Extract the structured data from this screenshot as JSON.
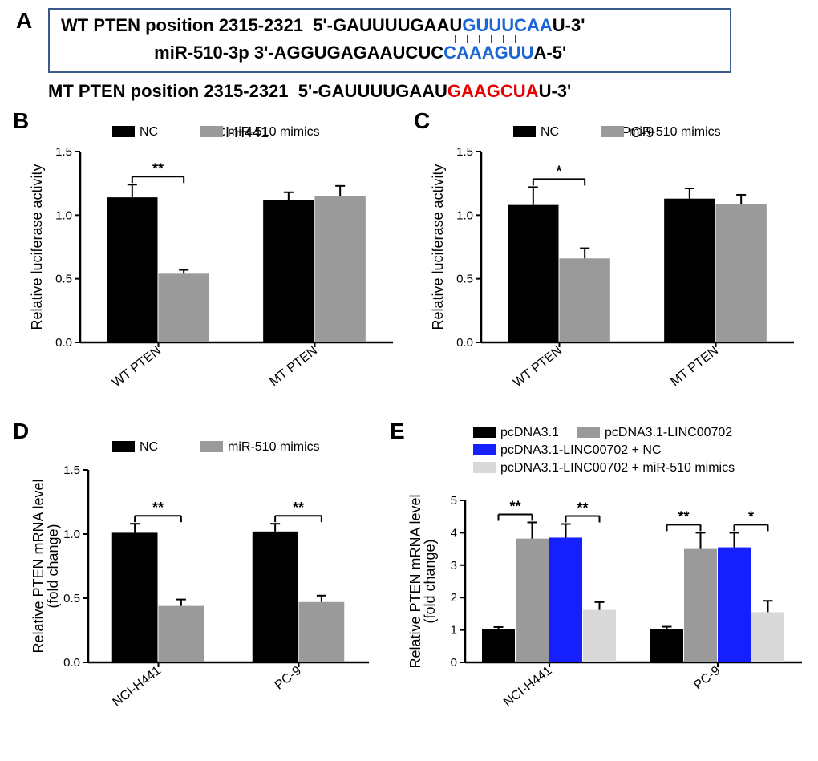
{
  "panelA": {
    "wt_label": "WT PTEN position 2315-2321",
    "wt_seq_pre_5": "5'-GAUUUUGAAU",
    "wt_seq_match": "GUUUCAA",
    "wt_seq_post": "U-3'",
    "mir_label": "miR-510-3p",
    "mir_seq_pre_3": "3'-AGGUGAGAAUCUC",
    "mir_seq_match": "CAAAGUU",
    "mir_seq_post": "A-5'",
    "mt_label": "MT PTEN position 2315-2321",
    "mt_seq_pre_5": "5'-GAUUUUGAAU",
    "mt_seq_mut": "GAAGCUA",
    "mt_seq_post": "U-3'",
    "match_color": "#1a66d6",
    "mut_color": "#e60000",
    "box_border_color": "#3a5a8a"
  },
  "colors": {
    "black": "#000000",
    "gray": "#9a9a9a",
    "light_gray": "#d9d9d9",
    "blue": "#1620ff",
    "axis": "#000000"
  },
  "panelB": {
    "title": "NCI-H441",
    "ylabel": "Relative luciferase activity",
    "ylim": [
      0,
      1.5
    ],
    "ytick_step": 0.5,
    "categories": [
      "WT PTEN",
      "MT PTEN"
    ],
    "series": [
      {
        "name": "NC",
        "color": "#000000",
        "values": [
          1.14,
          1.12
        ],
        "err": [
          0.1,
          0.06
        ]
      },
      {
        "name": "miR-510 mimics",
        "color": "#9a9a9a",
        "values": [
          0.54,
          1.15
        ],
        "err": [
          0.03,
          0.08
        ]
      }
    ],
    "sig": [
      {
        "group": 0,
        "label": "**"
      }
    ],
    "bar_width": 0.33
  },
  "panelC": {
    "title": "PC-9",
    "ylabel": "Relative luciferase activity",
    "ylim": [
      0,
      1.5
    ],
    "ytick_step": 0.5,
    "categories": [
      "WT PTEN",
      "MT PTEN"
    ],
    "series": [
      {
        "name": "NC",
        "color": "#000000",
        "values": [
          1.08,
          1.13
        ],
        "err": [
          0.14,
          0.08
        ]
      },
      {
        "name": "miR-510 mimics",
        "color": "#9a9a9a",
        "values": [
          0.66,
          1.09
        ],
        "err": [
          0.08,
          0.07
        ]
      }
    ],
    "sig": [
      {
        "group": 0,
        "label": "*"
      }
    ],
    "bar_width": 0.33
  },
  "panelD": {
    "ylabel1": "Relative PTEN mRNA level",
    "ylabel2": "(fold change)",
    "ylim": [
      0,
      1.5
    ],
    "ytick_step": 0.5,
    "categories": [
      "NCI-H441",
      "PC-9"
    ],
    "series": [
      {
        "name": "NC",
        "color": "#000000",
        "values": [
          1.01,
          1.02
        ],
        "err": [
          0.07,
          0.06
        ]
      },
      {
        "name": "miR-510 mimics",
        "color": "#9a9a9a",
        "values": [
          0.44,
          0.47
        ],
        "err": [
          0.05,
          0.05
        ]
      }
    ],
    "sig": [
      {
        "group": 0,
        "label": "**"
      },
      {
        "group": 1,
        "label": "**"
      }
    ],
    "bar_width": 0.33
  },
  "panelE": {
    "ylabel1": "Relative PTEN mRNA level",
    "ylabel2": "(fold change)",
    "ylim": [
      0,
      5
    ],
    "ytick_step": 1,
    "categories": [
      "NCI-H441",
      "PC-9"
    ],
    "series": [
      {
        "name": "pcDNA3.1",
        "color": "#000000",
        "values": [
          1.03,
          1.03
        ],
        "err": [
          0.06,
          0.07
        ]
      },
      {
        "name": "pcDNA3.1-LINC00702",
        "color": "#9a9a9a",
        "values": [
          3.82,
          3.5
        ],
        "err": [
          0.5,
          0.5
        ]
      },
      {
        "name": "pcDNA3.1-LINC00702 + NC",
        "color": "#1620ff",
        "values": [
          3.85,
          3.55
        ],
        "err": [
          0.42,
          0.45
        ]
      },
      {
        "name": "pcDNA3.1-LINC00702 + miR-510 mimics",
        "color": "#d9d9d9",
        "values": [
          1.62,
          1.55
        ],
        "err": [
          0.24,
          0.35
        ]
      }
    ],
    "sig": [
      {
        "group": 0,
        "pair": [
          0,
          1
        ],
        "label": "**"
      },
      {
        "group": 0,
        "pair": [
          2,
          3
        ],
        "label": "**"
      },
      {
        "group": 1,
        "pair": [
          0,
          1
        ],
        "label": "**"
      },
      {
        "group": 1,
        "pair": [
          2,
          3
        ],
        "label": "*"
      }
    ],
    "bar_width": 0.2
  }
}
